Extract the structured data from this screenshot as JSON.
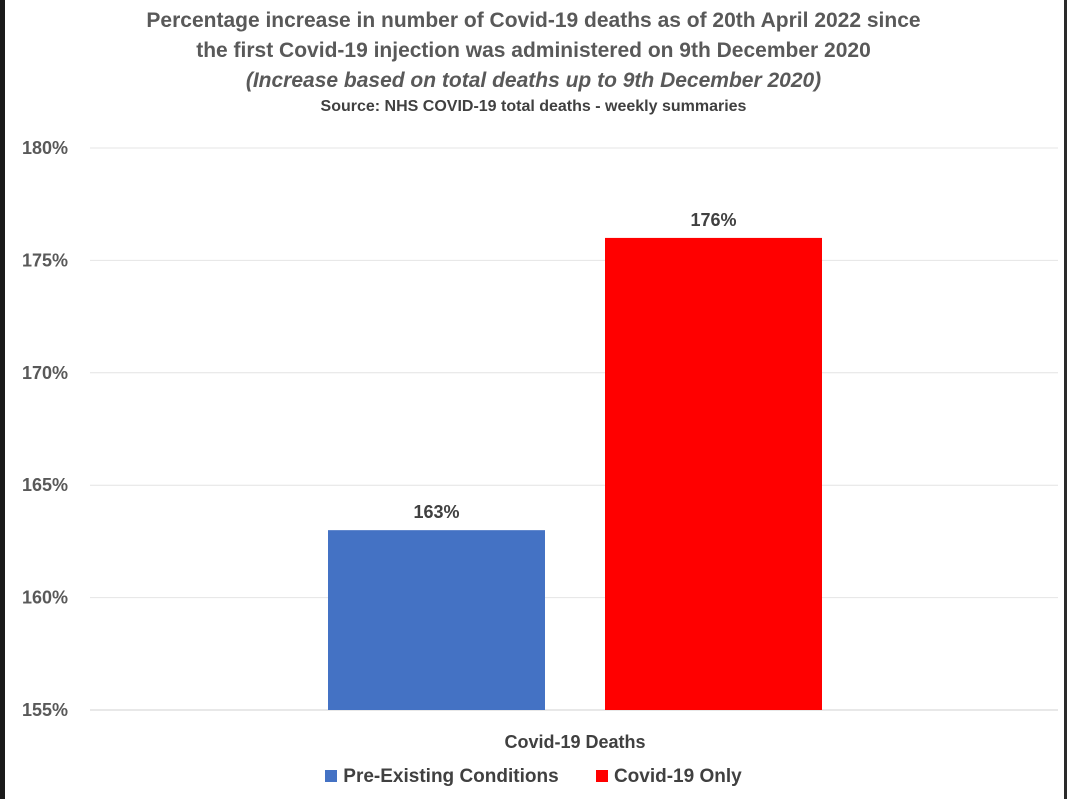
{
  "chart_data": {
    "type": "bar",
    "title": "Percentage increase in number of Covid-19 deaths as of 20th April 2022 since the first Covid-19 injection was administered on 9th December 2020",
    "title_lines": [
      "Percentage increase in number of Covid-19 deaths as of 20th April 2022 since",
      "the first Covid-19 injection was administered on 9th December 2020"
    ],
    "subtitle": "(Increase based on total deaths up to 9th December 2020)",
    "source": "Source: NHS COVID-19 total deaths - weekly summaries",
    "categories": [
      "Covid-19 Deaths"
    ],
    "series": [
      {
        "name": "Pre-Existing Conditions",
        "values": [
          163
        ],
        "color": "#4472C4",
        "label": "163%"
      },
      {
        "name": "Covid-19 Only",
        "values": [
          176
        ],
        "color": "#FF0000",
        "label": "176%"
      }
    ],
    "ylim": [
      155,
      180
    ],
    "yticks": [
      155,
      160,
      165,
      170,
      175,
      180
    ],
    "ytick_labels": [
      "155%",
      "160%",
      "165%",
      "170%",
      "175%",
      "180%"
    ],
    "grid": true,
    "legend_position": "bottom"
  }
}
